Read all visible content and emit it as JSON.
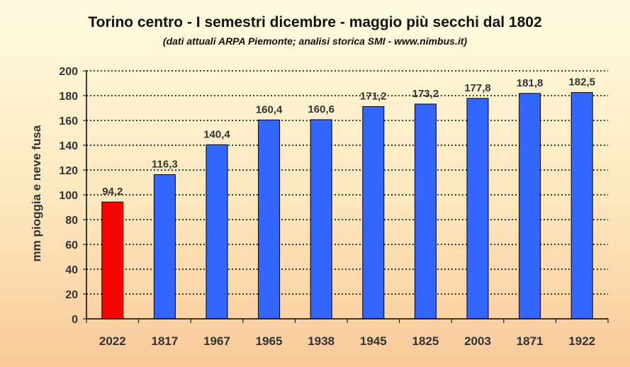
{
  "chart_data": {
    "type": "bar",
    "title": "Torino centro - I semestri dicembre - maggio più secchi dal 1802",
    "subtitle": "(dati attuali ARPA Piemonte; analisi storica SMI - www.nimbus.it)",
    "xlabel": "",
    "ylabel": "mm pioggia e neve fusa",
    "categories": [
      "2022",
      "1817",
      "1967",
      "1965",
      "1938",
      "1945",
      "1825",
      "2003",
      "1871",
      "1922"
    ],
    "values": [
      94.2,
      116.3,
      140.4,
      160.4,
      160.6,
      171.2,
      173.2,
      177.8,
      181.8,
      182.5
    ],
    "value_labels": [
      "94,2",
      "116,3",
      "140,4",
      "160,4",
      "160,6",
      "171,2",
      "173,2",
      "177,8",
      "181,8",
      "182,5"
    ],
    "bar_colors": [
      "#ff0000",
      "#3366ff",
      "#3366ff",
      "#3366ff",
      "#3366ff",
      "#3366ff",
      "#3366ff",
      "#3366ff",
      "#3366ff",
      "#3366ff"
    ],
    "ylim": [
      0,
      200
    ],
    "yticks": [
      0,
      20,
      40,
      60,
      80,
      100,
      120,
      140,
      160,
      180,
      200
    ],
    "grid": true,
    "grid_style": "dotted",
    "legend": "none"
  }
}
